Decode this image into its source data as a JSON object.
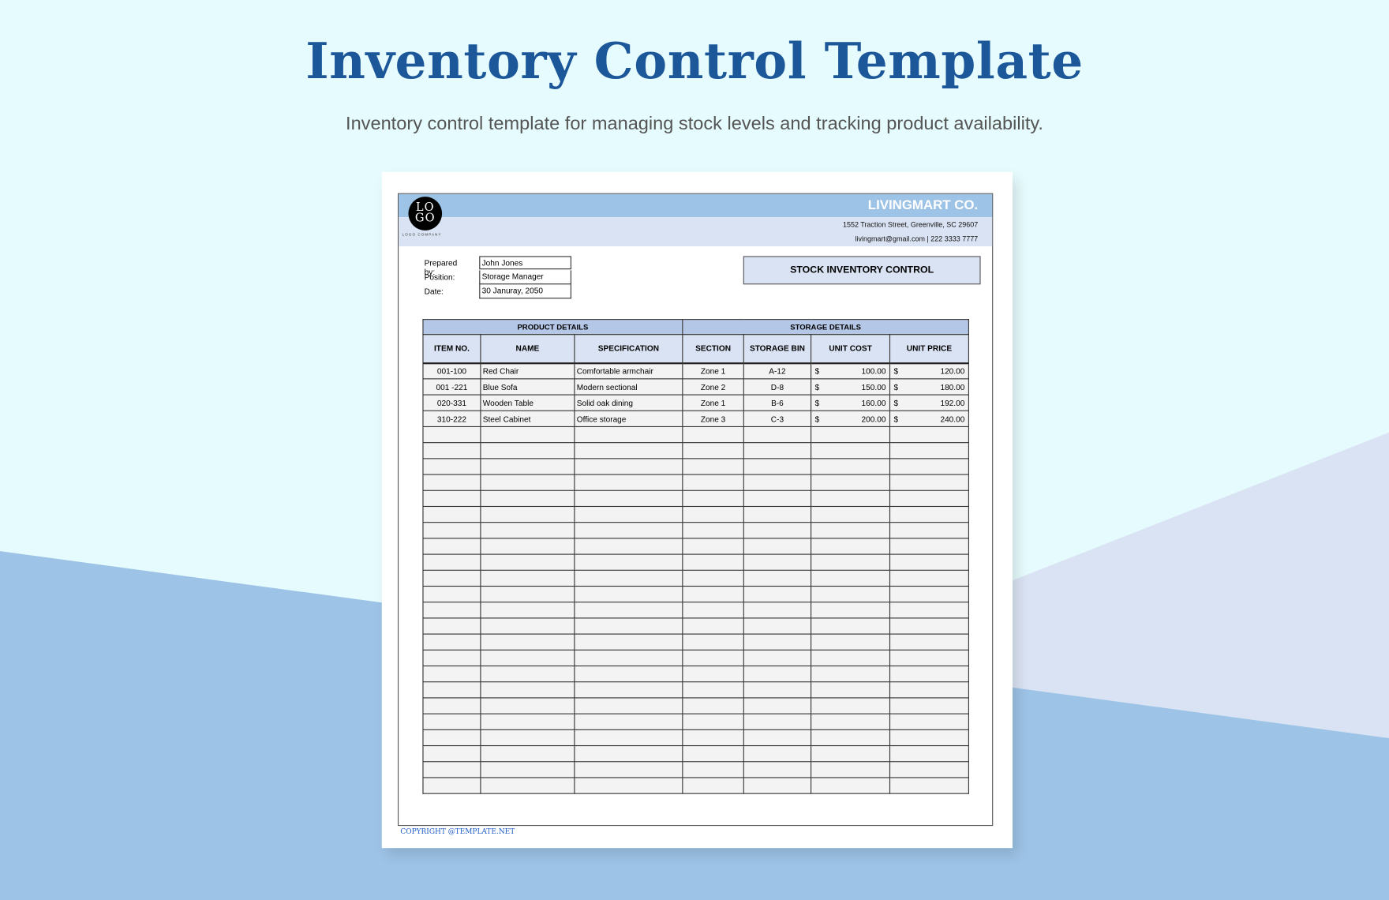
{
  "page": {
    "title": "Inventory Control Template",
    "subtitle": "Inventory control template for managing stock levels and tracking product availability."
  },
  "colors": {
    "accent": "#1b5799",
    "band": "#9dc3e6",
    "band_light": "#dae3f3",
    "background": "#e6fbfd",
    "bg_blue": "#9dc3e6",
    "bg_lavender": "#dae3f3"
  },
  "document": {
    "logo": {
      "mark": "LOGO",
      "line1": "LO",
      "line2": "GO",
      "caption": "LOGO COMPANY"
    },
    "company": "LIVINGMART CO.",
    "address": "1552 Traction Street, Greenville, SC 29607",
    "contact": "livingmart@gmail.com | 222 3333 7777",
    "info": [
      {
        "label": "Prepared by:",
        "value": "John Jones"
      },
      {
        "label": "Position:",
        "value": "Storage Manager"
      },
      {
        "label": "Date:",
        "value": "30 Januray, 2050"
      }
    ],
    "heading": "STOCK INVENTORY CONTROL",
    "groups": [
      "PRODUCT DETAILS",
      "STORAGE DETAILS"
    ],
    "columns": [
      "ITEM NO.",
      "NAME",
      "SPECIFICATION",
      "SECTION",
      "STORAGE BIN",
      "UNIT COST",
      "UNIT PRICE"
    ],
    "currency": "$",
    "rows": [
      {
        "item": "001-100",
        "name": "Red Chair",
        "spec": "Comfortable armchair",
        "section": "Zone 1",
        "bin": "A-12",
        "cost": "100.00",
        "price": "120.00"
      },
      {
        "item": "001 -221",
        "name": "Blue Sofa",
        "spec": "Modern sectional",
        "section": "Zone 2",
        "bin": "D-8",
        "cost": "150.00",
        "price": "180.00"
      },
      {
        "item": "020-331",
        "name": "Wooden Table",
        "spec": "Solid oak dining",
        "section": "Zone 1",
        "bin": "B-6",
        "cost": "160.00",
        "price": "192.00"
      },
      {
        "item": "310-222",
        "name": "Steel Cabinet",
        "spec": "Office storage",
        "section": "Zone 3",
        "bin": "C-3",
        "cost": "200.00",
        "price": "240.00"
      }
    ],
    "copyright": "COPYRIGHT @TEMPLATE.NET"
  }
}
